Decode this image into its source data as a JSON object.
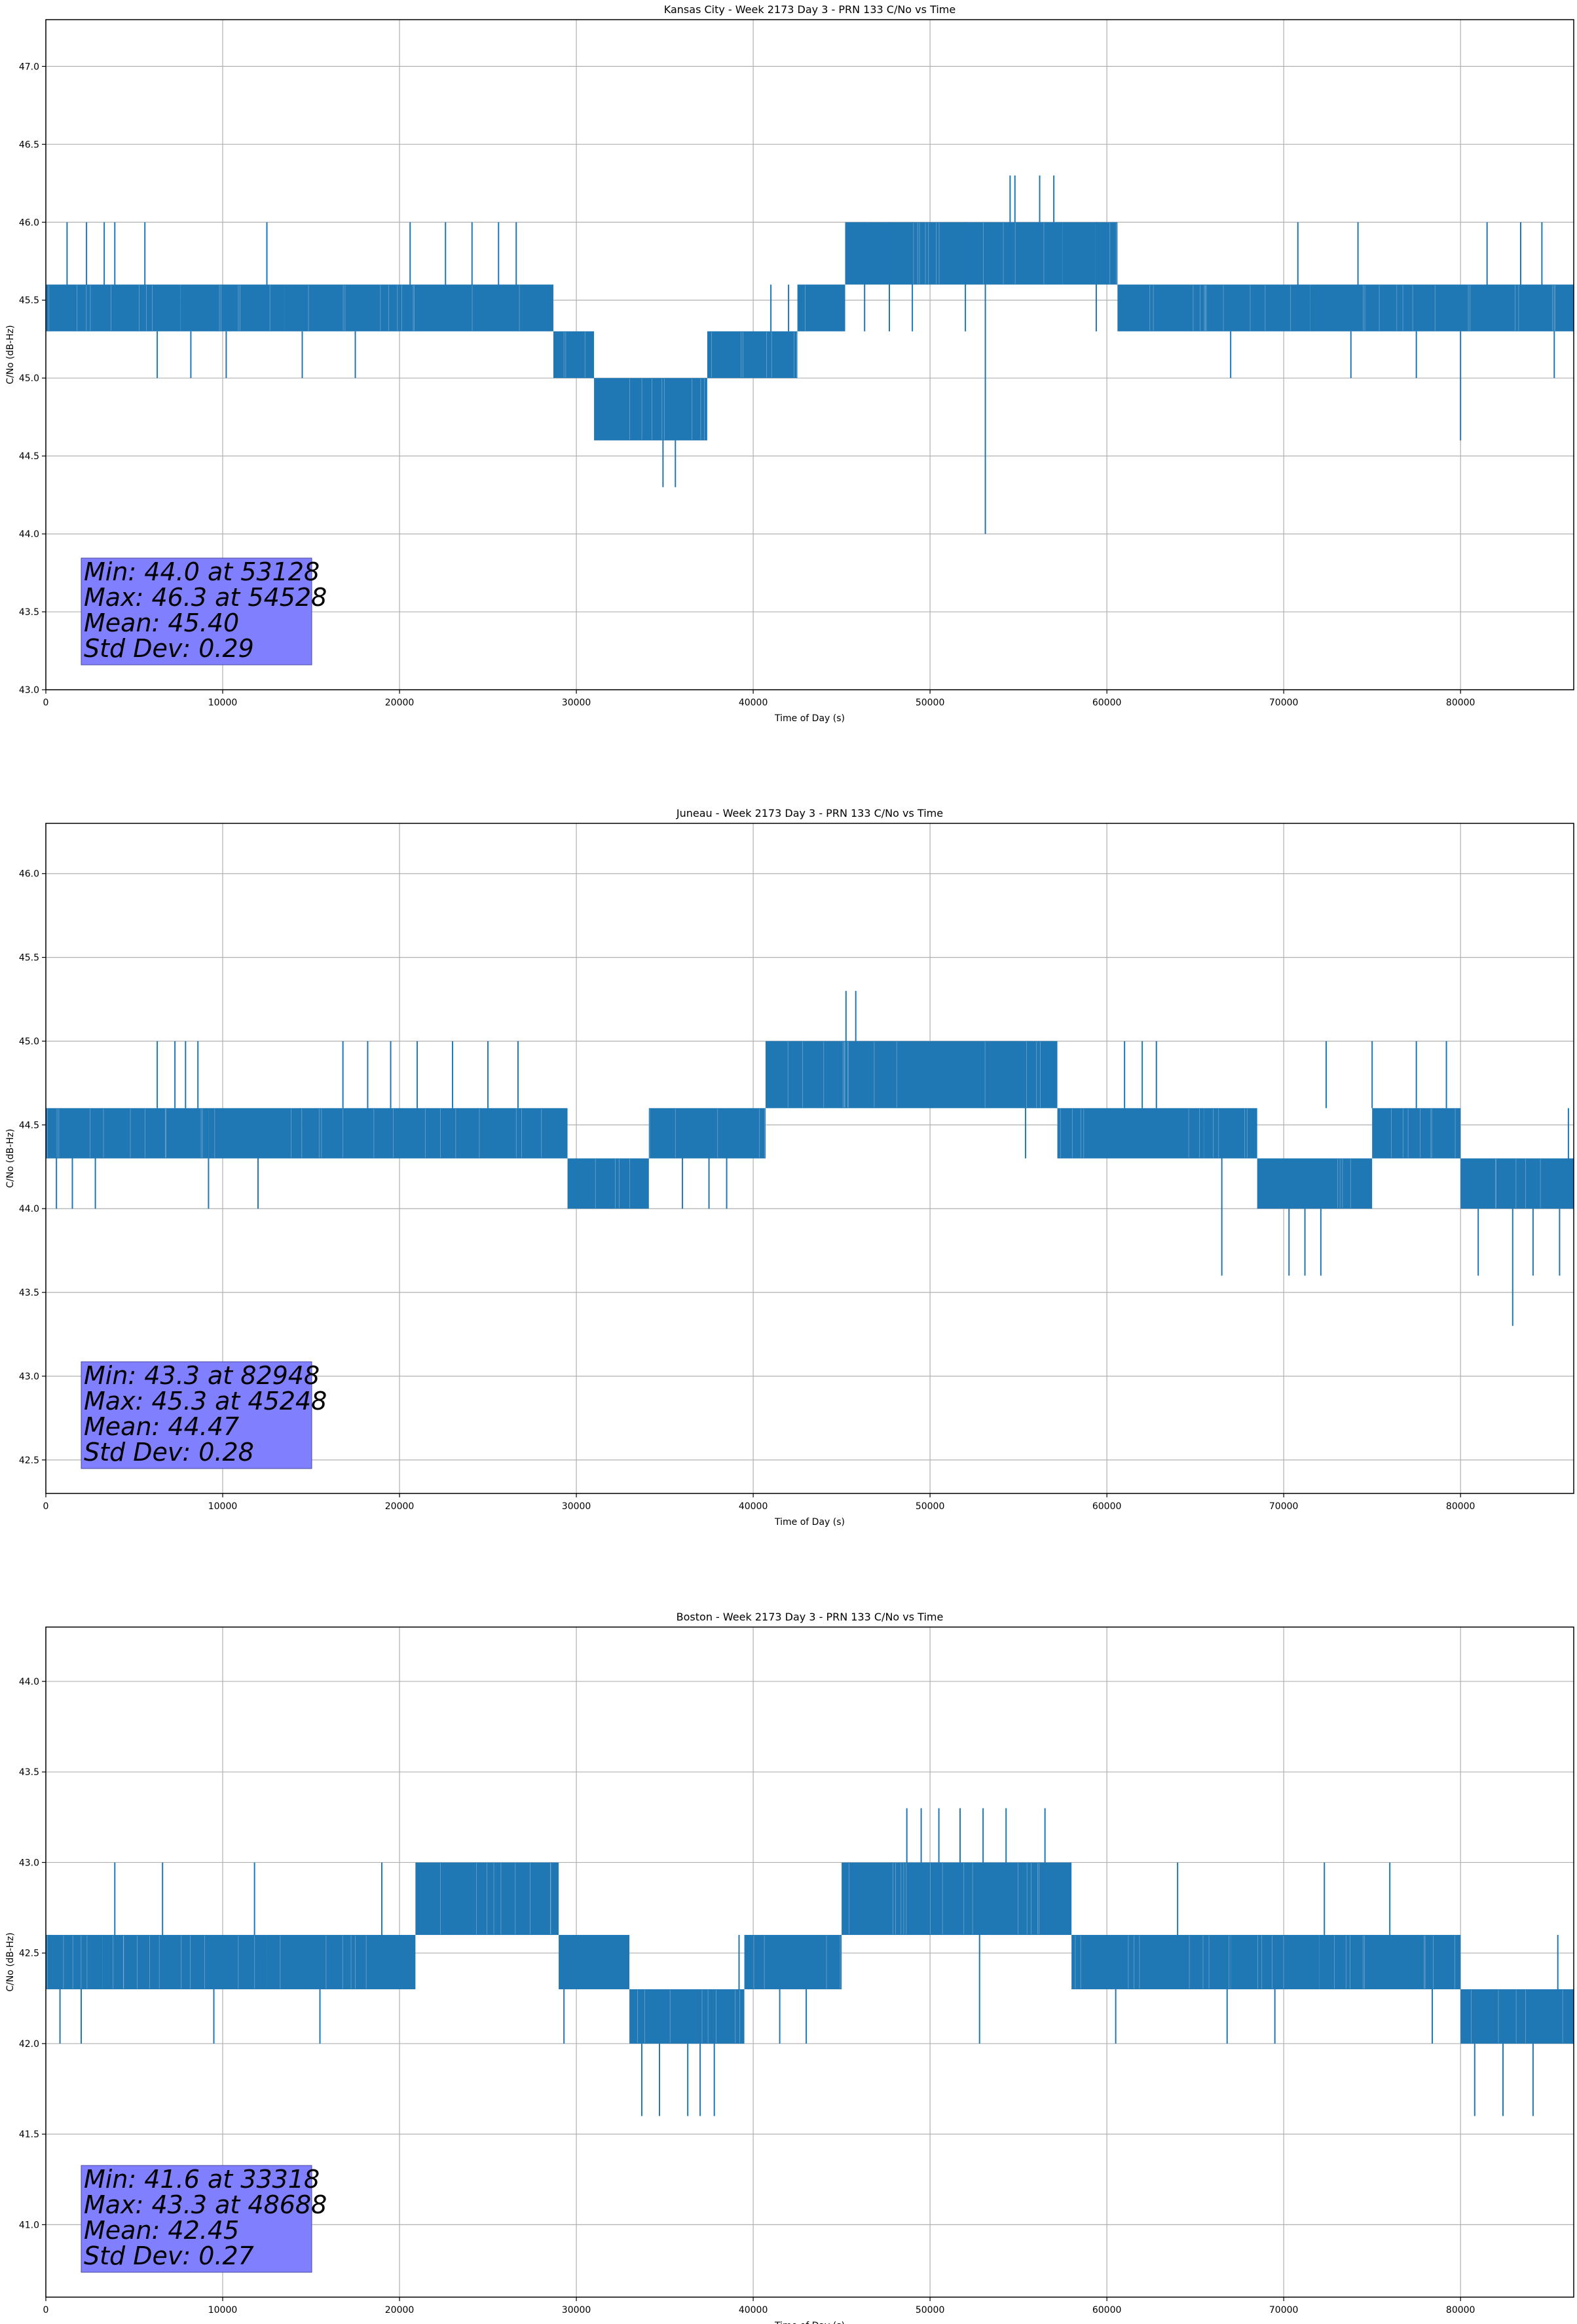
{
  "chart_data": [
    {
      "type": "line",
      "title": "Kansas City - Week 2173 Day 3 - PRN 133 C/No vs Time",
      "xlabel": "Time of Day (s)",
      "ylabel": "C/No (dB-Hz)",
      "xlim": [
        0,
        86400
      ],
      "ylim": [
        43.0,
        47.3
      ],
      "xticks": [
        0,
        10000,
        20000,
        30000,
        40000,
        50000,
        60000,
        70000,
        80000
      ],
      "yticks": [
        43.0,
        43.5,
        44.0,
        44.5,
        45.0,
        45.5,
        46.0,
        46.5,
        47.0
      ],
      "ytick_decimals": 1,
      "grid": true,
      "series_color": "#1f77b4",
      "segments": [
        {
          "x": [
            0,
            7600
          ],
          "y": [
            45.3,
            45.6
          ]
        },
        {
          "x": [
            7600,
            13500
          ],
          "y": [
            45.3,
            45.6
          ]
        },
        {
          "x": [
            13500,
            20000
          ],
          "y": [
            45.3,
            45.6
          ]
        },
        {
          "x": [
            20000,
            28700
          ],
          "y": [
            45.3,
            45.6
          ]
        },
        {
          "x": [
            28700,
            31000
          ],
          "y": [
            45.0,
            45.3
          ]
        },
        {
          "x": [
            31000,
            37400
          ],
          "y": [
            44.6,
            45.0
          ]
        },
        {
          "x": [
            37400,
            42500
          ],
          "y": [
            45.0,
            45.3
          ]
        },
        {
          "x": [
            42500,
            45200
          ],
          "y": [
            45.3,
            45.6
          ]
        },
        {
          "x": [
            45200,
            57500
          ],
          "y": [
            45.6,
            46.0
          ]
        },
        {
          "x": [
            57500,
            60600
          ],
          "y": [
            45.6,
            46.0
          ]
        },
        {
          "x": [
            60600,
            71500
          ],
          "y": [
            45.3,
            45.6
          ]
        },
        {
          "x": [
            71500,
            86400
          ],
          "y": [
            45.3,
            45.6
          ]
        }
      ],
      "spikes": [
        {
          "x": 1200,
          "y1": 45.6,
          "y2": 46.0
        },
        {
          "x": 2300,
          "y1": 45.6,
          "y2": 46.0
        },
        {
          "x": 3300,
          "y1": 45.6,
          "y2": 46.0
        },
        {
          "x": 3900,
          "y1": 45.6,
          "y2": 46.0
        },
        {
          "x": 5600,
          "y1": 45.6,
          "y2": 46.0
        },
        {
          "x": 6300,
          "y1": 45.3,
          "y2": 45.0
        },
        {
          "x": 8200,
          "y1": 45.3,
          "y2": 45.0
        },
        {
          "x": 10200,
          "y1": 45.3,
          "y2": 45.0
        },
        {
          "x": 12500,
          "y1": 45.6,
          "y2": 46.0
        },
        {
          "x": 14500,
          "y1": 45.3,
          "y2": 45.0
        },
        {
          "x": 17500,
          "y1": 45.3,
          "y2": 45.0
        },
        {
          "x": 20600,
          "y1": 45.6,
          "y2": 46.0
        },
        {
          "x": 22600,
          "y1": 45.6,
          "y2": 46.0
        },
        {
          "x": 24100,
          "y1": 45.6,
          "y2": 46.0
        },
        {
          "x": 25600,
          "y1": 45.6,
          "y2": 46.0
        },
        {
          "x": 26600,
          "y1": 45.6,
          "y2": 46.0
        },
        {
          "x": 34900,
          "y1": 44.6,
          "y2": 44.3
        },
        {
          "x": 35600,
          "y1": 44.6,
          "y2": 44.3
        },
        {
          "x": 41000,
          "y1": 45.3,
          "y2": 45.6
        },
        {
          "x": 42000,
          "y1": 45.3,
          "y2": 45.6
        },
        {
          "x": 46300,
          "y1": 46.0,
          "y2": 45.3
        },
        {
          "x": 47700,
          "y1": 46.0,
          "y2": 45.3
        },
        {
          "x": 49000,
          "y1": 46.0,
          "y2": 45.3
        },
        {
          "x": 52000,
          "y1": 46.0,
          "y2": 45.3
        },
        {
          "x": 53128,
          "y1": 45.6,
          "y2": 44.0
        },
        {
          "x": 54528,
          "y1": 46.0,
          "y2": 46.3
        },
        {
          "x": 54800,
          "y1": 46.0,
          "y2": 46.3
        },
        {
          "x": 56200,
          "y1": 46.0,
          "y2": 46.3
        },
        {
          "x": 57000,
          "y1": 46.0,
          "y2": 46.3
        },
        {
          "x": 59400,
          "y1": 46.0,
          "y2": 45.3
        },
        {
          "x": 67000,
          "y1": 45.3,
          "y2": 45.0
        },
        {
          "x": 70800,
          "y1": 45.6,
          "y2": 46.0
        },
        {
          "x": 73800,
          "y1": 45.3,
          "y2": 45.0
        },
        {
          "x": 74200,
          "y1": 45.6,
          "y2": 46.0
        },
        {
          "x": 77500,
          "y1": 45.3,
          "y2": 45.0
        },
        {
          "x": 80000,
          "y1": 45.3,
          "y2": 44.6
        },
        {
          "x": 81500,
          "y1": 45.6,
          "y2": 46.0
        },
        {
          "x": 83400,
          "y1": 45.6,
          "y2": 46.0
        },
        {
          "x": 84600,
          "y1": 45.6,
          "y2": 46.0
        },
        {
          "x": 85300,
          "y1": 45.3,
          "y2": 45.0
        }
      ],
      "stats": {
        "line1": "Min: 44.0 at 53128",
        "line2": "Max: 46.3 at 54528",
        "line3": "Mean: 45.40",
        "line4": "Std Dev: 0.29"
      }
    },
    {
      "type": "line",
      "title": "Juneau - Week 2173 Day 3 - PRN 133 C/No vs Time",
      "xlabel": "Time of Day (s)",
      "ylabel": "C/No (dB-Hz)",
      "xlim": [
        0,
        86400
      ],
      "ylim": [
        42.3,
        46.3
      ],
      "xticks": [
        0,
        10000,
        20000,
        30000,
        40000,
        50000,
        60000,
        70000,
        80000
      ],
      "yticks": [
        42.5,
        43.0,
        43.5,
        44.0,
        44.5,
        45.0,
        45.5,
        46.0
      ],
      "ytick_decimals": 1,
      "grid": true,
      "series_color": "#1f77b4",
      "segments": [
        {
          "x": [
            0,
            6000
          ],
          "y": [
            44.3,
            44.6
          ]
        },
        {
          "x": [
            6000,
            9200
          ],
          "y": [
            44.3,
            44.6
          ]
        },
        {
          "x": [
            9200,
            14500
          ],
          "y": [
            44.3,
            44.6
          ]
        },
        {
          "x": [
            14500,
            29500
          ],
          "y": [
            44.3,
            44.6
          ]
        },
        {
          "x": [
            29500,
            34100
          ],
          "y": [
            44.0,
            44.3
          ]
        },
        {
          "x": [
            34100,
            40700
          ],
          "y": [
            44.3,
            44.6
          ]
        },
        {
          "x": [
            40700,
            57200
          ],
          "y": [
            44.6,
            45.0
          ]
        },
        {
          "x": [
            57200,
            65500
          ],
          "y": [
            44.3,
            44.6
          ]
        },
        {
          "x": [
            65500,
            68500
          ],
          "y": [
            44.3,
            44.6
          ]
        },
        {
          "x": [
            68500,
            75000
          ],
          "y": [
            44.0,
            44.3
          ]
        },
        {
          "x": [
            75000,
            80000
          ],
          "y": [
            44.3,
            44.6
          ]
        },
        {
          "x": [
            80000,
            86400
          ],
          "y": [
            44.0,
            44.3
          ]
        }
      ],
      "spikes": [
        {
          "x": 600,
          "y1": 44.3,
          "y2": 44.0
        },
        {
          "x": 1500,
          "y1": 44.3,
          "y2": 44.0
        },
        {
          "x": 2800,
          "y1": 44.3,
          "y2": 44.0
        },
        {
          "x": 6300,
          "y1": 44.6,
          "y2": 45.0
        },
        {
          "x": 7300,
          "y1": 44.6,
          "y2": 45.0
        },
        {
          "x": 7900,
          "y1": 44.6,
          "y2": 45.0
        },
        {
          "x": 8600,
          "y1": 44.6,
          "y2": 45.0
        },
        {
          "x": 9200,
          "y1": 44.3,
          "y2": 44.0
        },
        {
          "x": 12000,
          "y1": 44.3,
          "y2": 44.0
        },
        {
          "x": 16800,
          "y1": 44.6,
          "y2": 45.0
        },
        {
          "x": 18200,
          "y1": 44.6,
          "y2": 45.0
        },
        {
          "x": 19500,
          "y1": 44.6,
          "y2": 45.0
        },
        {
          "x": 21000,
          "y1": 44.6,
          "y2": 45.0
        },
        {
          "x": 23000,
          "y1": 44.6,
          "y2": 45.0
        },
        {
          "x": 25000,
          "y1": 44.6,
          "y2": 45.0
        },
        {
          "x": 26700,
          "y1": 44.6,
          "y2": 45.0
        },
        {
          "x": 32000,
          "y1": 44.3,
          "y2": 44.0
        },
        {
          "x": 36000,
          "y1": 44.3,
          "y2": 44.0
        },
        {
          "x": 37500,
          "y1": 44.3,
          "y2": 44.0
        },
        {
          "x": 38500,
          "y1": 44.3,
          "y2": 44.0
        },
        {
          "x": 45248,
          "y1": 45.0,
          "y2": 45.3
        },
        {
          "x": 45800,
          "y1": 45.0,
          "y2": 45.3
        },
        {
          "x": 55400,
          "y1": 44.6,
          "y2": 44.3
        },
        {
          "x": 61000,
          "y1": 44.6,
          "y2": 45.0
        },
        {
          "x": 62000,
          "y1": 44.6,
          "y2": 45.0
        },
        {
          "x": 62800,
          "y1": 44.6,
          "y2": 45.0
        },
        {
          "x": 66500,
          "y1": 44.3,
          "y2": 43.6
        },
        {
          "x": 70300,
          "y1": 44.0,
          "y2": 43.6
        },
        {
          "x": 71200,
          "y1": 44.0,
          "y2": 43.6
        },
        {
          "x": 72100,
          "y1": 44.0,
          "y2": 43.6
        },
        {
          "x": 72400,
          "y1": 44.6,
          "y2": 45.0
        },
        {
          "x": 75000,
          "y1": 44.6,
          "y2": 45.0
        },
        {
          "x": 77500,
          "y1": 44.6,
          "y2": 45.0
        },
        {
          "x": 79200,
          "y1": 44.6,
          "y2": 45.0
        },
        {
          "x": 81000,
          "y1": 44.0,
          "y2": 43.6
        },
        {
          "x": 82948,
          "y1": 44.0,
          "y2": 43.3
        },
        {
          "x": 84100,
          "y1": 44.0,
          "y2": 43.6
        },
        {
          "x": 85600,
          "y1": 44.0,
          "y2": 43.6
        },
        {
          "x": 86100,
          "y1": 44.3,
          "y2": 44.6
        }
      ],
      "stats": {
        "line1": "Min: 43.3 at 82948",
        "line2": "Max: 45.3 at 45248",
        "line3": "Mean: 44.47",
        "line4": "Std Dev: 0.28"
      }
    },
    {
      "type": "line",
      "title": "Boston - Week 2173 Day 3 - PRN 133 C/No vs Time",
      "xlabel": "Time of Day (s)",
      "ylabel": "C/No (dB-Hz)",
      "xlim": [
        0,
        86400
      ],
      "ylim": [
        40.6,
        44.3
      ],
      "xticks": [
        0,
        10000,
        20000,
        30000,
        40000,
        50000,
        60000,
        70000,
        80000
      ],
      "yticks": [
        41.0,
        41.5,
        42.0,
        42.5,
        43.0,
        43.5,
        44.0
      ],
      "ytick_decimals": 1,
      "grid": true,
      "series_color": "#1f77b4",
      "segments": [
        {
          "x": [
            0,
            3200
          ],
          "y": [
            42.3,
            42.6
          ]
        },
        {
          "x": [
            3200,
            12500
          ],
          "y": [
            42.3,
            42.6
          ]
        },
        {
          "x": [
            12500,
            20900
          ],
          "y": [
            42.3,
            42.6
          ]
        },
        {
          "x": [
            20900,
            29000
          ],
          "y": [
            42.6,
            43.0
          ]
        },
        {
          "x": [
            29000,
            33000
          ],
          "y": [
            42.3,
            42.6
          ]
        },
        {
          "x": [
            33000,
            39500
          ],
          "y": [
            42.0,
            42.3
          ]
        },
        {
          "x": [
            39500,
            45000
          ],
          "y": [
            42.3,
            42.6
          ]
        },
        {
          "x": [
            45000,
            58000
          ],
          "y": [
            42.6,
            43.0
          ]
        },
        {
          "x": [
            58000,
            67000
          ],
          "y": [
            42.3,
            42.6
          ]
        },
        {
          "x": [
            67000,
            72000
          ],
          "y": [
            42.3,
            42.6
          ]
        },
        {
          "x": [
            72000,
            80000
          ],
          "y": [
            42.3,
            42.6
          ]
        },
        {
          "x": [
            80000,
            86400
          ],
          "y": [
            42.0,
            42.3
          ]
        }
      ],
      "spikes": [
        {
          "x": 800,
          "y1": 42.3,
          "y2": 42.0
        },
        {
          "x": 2000,
          "y1": 42.3,
          "y2": 42.0
        },
        {
          "x": 3900,
          "y1": 42.6,
          "y2": 43.0
        },
        {
          "x": 6600,
          "y1": 42.6,
          "y2": 43.0
        },
        {
          "x": 9500,
          "y1": 42.3,
          "y2": 42.0
        },
        {
          "x": 11800,
          "y1": 42.6,
          "y2": 43.0
        },
        {
          "x": 15500,
          "y1": 42.3,
          "y2": 42.0
        },
        {
          "x": 19000,
          "y1": 42.6,
          "y2": 43.0
        },
        {
          "x": 24500,
          "y1": 43.0,
          "y2": 42.6
        },
        {
          "x": 29300,
          "y1": 42.3,
          "y2": 42.0
        },
        {
          "x": 33700,
          "y1": 42.0,
          "y2": 41.6
        },
        {
          "x": 34700,
          "y1": 42.0,
          "y2": 41.6
        },
        {
          "x": 36300,
          "y1": 42.0,
          "y2": 41.6
        },
        {
          "x": 37000,
          "y1": 42.0,
          "y2": 41.6
        },
        {
          "x": 37800,
          "y1": 42.0,
          "y2": 41.6
        },
        {
          "x": 39200,
          "y1": 42.3,
          "y2": 42.6
        },
        {
          "x": 41500,
          "y1": 42.3,
          "y2": 42.0
        },
        {
          "x": 43000,
          "y1": 42.3,
          "y2": 42.0
        },
        {
          "x": 48688,
          "y1": 43.0,
          "y2": 43.3
        },
        {
          "x": 49500,
          "y1": 43.0,
          "y2": 43.3
        },
        {
          "x": 50500,
          "y1": 43.0,
          "y2": 43.3
        },
        {
          "x": 51700,
          "y1": 43.0,
          "y2": 43.3
        },
        {
          "x": 53000,
          "y1": 43.0,
          "y2": 43.3
        },
        {
          "x": 54300,
          "y1": 43.0,
          "y2": 43.3
        },
        {
          "x": 56500,
          "y1": 43.0,
          "y2": 43.3
        },
        {
          "x": 52800,
          "y1": 42.6,
          "y2": 42.0
        },
        {
          "x": 60500,
          "y1": 42.3,
          "y2": 42.0
        },
        {
          "x": 64000,
          "y1": 42.6,
          "y2": 43.0
        },
        {
          "x": 66800,
          "y1": 42.3,
          "y2": 42.0
        },
        {
          "x": 69500,
          "y1": 42.3,
          "y2": 42.0
        },
        {
          "x": 72300,
          "y1": 42.6,
          "y2": 43.0
        },
        {
          "x": 76000,
          "y1": 42.6,
          "y2": 43.0
        },
        {
          "x": 78400,
          "y1": 42.3,
          "y2": 42.0
        },
        {
          "x": 80800,
          "y1": 42.0,
          "y2": 41.6
        },
        {
          "x": 82400,
          "y1": 42.0,
          "y2": 41.6
        },
        {
          "x": 84100,
          "y1": 42.0,
          "y2": 41.6
        },
        {
          "x": 85500,
          "y1": 42.3,
          "y2": 42.6
        }
      ],
      "stats": {
        "line1": "Min: 41.6 at 33318",
        "line2": "Max: 43.3 at 48688",
        "line3": "Mean: 42.45",
        "line4": "Std Dev: 0.27"
      }
    }
  ],
  "style": {
    "stats_box_fill": "#8080ff",
    "grid_color": "#b0b0b0",
    "axis_color": "#000000",
    "series_color": "#1f77b4"
  }
}
